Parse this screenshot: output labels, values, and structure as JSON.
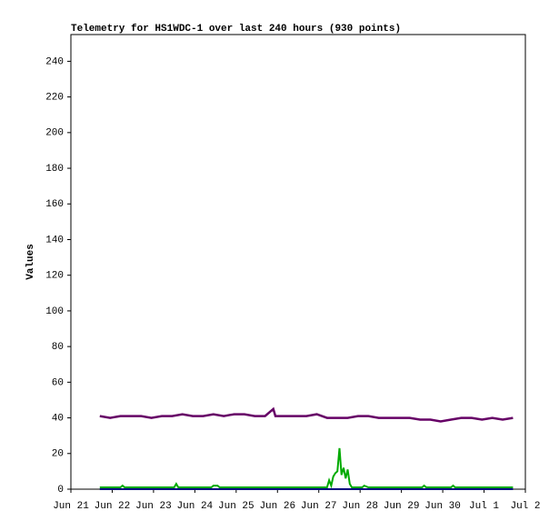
{
  "chart_data": {
    "type": "line",
    "title": "Telemetry for HS1WDC-1 over last 240 hours (930 points)",
    "y_label": "Values",
    "xlim": [
      0,
      11
    ],
    "xticks": [
      {
        "value": 0,
        "label": "Jun 21"
      },
      {
        "value": 1,
        "label": "Jun 22"
      },
      {
        "value": 2,
        "label": "Jun 23"
      },
      {
        "value": 3,
        "label": "Jun 24"
      },
      {
        "value": 4,
        "label": "Jun 25"
      },
      {
        "value": 5,
        "label": "Jun 26"
      },
      {
        "value": 6,
        "label": "Jun 27"
      },
      {
        "value": 7,
        "label": "Jun 28"
      },
      {
        "value": 8,
        "label": "Jun 29"
      },
      {
        "value": 9,
        "label": "Jun 30"
      },
      {
        "value": 10,
        "label": "Jul 1"
      },
      {
        "value": 11,
        "label": "Jul 2"
      }
    ],
    "ylim": [
      0,
      255
    ],
    "yticks": [
      0,
      20,
      40,
      60,
      80,
      100,
      120,
      140,
      160,
      180,
      200,
      220,
      240
    ],
    "series": [
      {
        "color": "#660066",
        "x": [
          0.7,
          0.95,
          1.2,
          1.45,
          1.7,
          1.95,
          2.2,
          2.45,
          2.7,
          2.95,
          3.2,
          3.45,
          3.7,
          3.95,
          4.2,
          4.45,
          4.7,
          4.9,
          4.95,
          5.2,
          5.45,
          5.7,
          5.95,
          6.2,
          6.45,
          6.7,
          6.95,
          7.2,
          7.45,
          7.7,
          7.95,
          8.2,
          8.45,
          8.7,
          8.95,
          9.2,
          9.45,
          9.7,
          9.95,
          10.2,
          10.45,
          10.7
        ],
        "values": [
          41,
          40,
          41,
          41,
          41,
          40,
          41,
          41,
          42,
          41,
          41,
          42,
          41,
          42,
          42,
          41,
          41,
          45,
          41,
          41,
          41,
          41,
          42,
          40,
          40,
          40,
          41,
          41,
          40,
          40,
          40,
          40,
          39,
          39,
          38,
          39,
          40,
          40,
          39,
          40,
          39,
          40
        ]
      },
      {
        "color": "#00aa00",
        "x": [
          0.7,
          1.2,
          1.25,
          1.3,
          2.5,
          2.55,
          2.6,
          3.4,
          3.45,
          3.55,
          3.6,
          5.2,
          5.5,
          6.2,
          6.25,
          6.3,
          6.35,
          6.4,
          6.45,
          6.5,
          6.55,
          6.6,
          6.65,
          6.7,
          6.75,
          6.8,
          7.05,
          7.1,
          7.2,
          8.5,
          8.55,
          8.6,
          9.2,
          9.25,
          9.3,
          10.7
        ],
        "values": [
          1,
          1,
          2,
          1,
          1,
          3,
          1,
          1,
          2,
          2,
          1,
          1,
          1,
          1,
          5,
          2,
          7,
          9,
          10,
          23,
          8,
          12,
          6,
          11,
          3,
          1,
          1,
          2,
          1,
          1,
          2,
          1,
          1,
          2,
          1,
          1
        ]
      },
      {
        "color": "#000080",
        "x": [
          0.7,
          10.7
        ],
        "values": [
          0,
          0
        ]
      }
    ]
  }
}
